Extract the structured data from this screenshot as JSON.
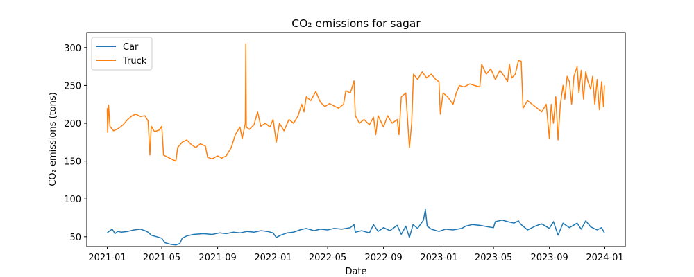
{
  "chart_data": {
    "type": "line",
    "title": "CO₂ emissions for sagar",
    "xlabel": "Date",
    "ylabel": "CO₂ emissions (tons)",
    "xlim": [
      "2020-11-17",
      "2024-02-15"
    ],
    "ylim": [
      37,
      320
    ],
    "x_ticks": [
      "2021-01",
      "2021-05",
      "2021-09",
      "2022-01",
      "2022-05",
      "2022-09",
      "2023-01",
      "2023-05",
      "2023-09",
      "2024-01"
    ],
    "y_ticks": [
      50,
      100,
      150,
      200,
      250,
      300
    ],
    "grid": false,
    "legend_position": "upper-left",
    "series": [
      {
        "name": "Car",
        "color": "#1f77b4",
        "points": [
          [
            "2021-01-01",
            55
          ],
          [
            "2021-01-07",
            58
          ],
          [
            "2021-01-12",
            60
          ],
          [
            "2021-01-18",
            54
          ],
          [
            "2021-01-24",
            57
          ],
          [
            "2021-02-01",
            56
          ],
          [
            "2021-02-15",
            57
          ],
          [
            "2021-03-01",
            59
          ],
          [
            "2021-03-15",
            60
          ],
          [
            "2021-03-25",
            58
          ],
          [
            "2021-04-01",
            56
          ],
          [
            "2021-04-08",
            52
          ],
          [
            "2021-04-20",
            50
          ],
          [
            "2021-05-01",
            48
          ],
          [
            "2021-05-08",
            42
          ],
          [
            "2021-05-20",
            40
          ],
          [
            "2021-06-01",
            39
          ],
          [
            "2021-06-10",
            41
          ],
          [
            "2021-06-15",
            48
          ],
          [
            "2021-06-25",
            51
          ],
          [
            "2021-07-10",
            53
          ],
          [
            "2021-08-01",
            54
          ],
          [
            "2021-08-20",
            53
          ],
          [
            "2021-09-05",
            55
          ],
          [
            "2021-09-20",
            54
          ],
          [
            "2021-10-05",
            56
          ],
          [
            "2021-10-20",
            55
          ],
          [
            "2021-11-05",
            57
          ],
          [
            "2021-11-20",
            56
          ],
          [
            "2021-12-05",
            58
          ],
          [
            "2021-12-20",
            57
          ],
          [
            "2022-01-01",
            55
          ],
          [
            "2022-01-08",
            49
          ],
          [
            "2022-01-18",
            52
          ],
          [
            "2022-02-01",
            55
          ],
          [
            "2022-02-15",
            56
          ],
          [
            "2022-03-01",
            59
          ],
          [
            "2022-03-15",
            61
          ],
          [
            "2022-04-01",
            58
          ],
          [
            "2022-04-15",
            60
          ],
          [
            "2022-05-01",
            59
          ],
          [
            "2022-05-15",
            61
          ],
          [
            "2022-06-01",
            60
          ],
          [
            "2022-06-20",
            62
          ],
          [
            "2022-06-28",
            66
          ],
          [
            "2022-07-01",
            56
          ],
          [
            "2022-07-15",
            58
          ],
          [
            "2022-08-01",
            55
          ],
          [
            "2022-08-10",
            66
          ],
          [
            "2022-08-20",
            57
          ],
          [
            "2022-09-01",
            62
          ],
          [
            "2022-09-15",
            58
          ],
          [
            "2022-10-01",
            65
          ],
          [
            "2022-10-10",
            53
          ],
          [
            "2022-10-20",
            64
          ],
          [
            "2022-10-28",
            49
          ],
          [
            "2022-11-05",
            66
          ],
          [
            "2022-11-15",
            61
          ],
          [
            "2022-11-28",
            72
          ],
          [
            "2022-12-02",
            86
          ],
          [
            "2022-12-06",
            64
          ],
          [
            "2022-12-15",
            60
          ],
          [
            "2023-01-01",
            57
          ],
          [
            "2023-01-15",
            60
          ],
          [
            "2023-02-01",
            59
          ],
          [
            "2023-02-20",
            61
          ],
          [
            "2023-03-01",
            64
          ],
          [
            "2023-03-15",
            66
          ],
          [
            "2023-04-01",
            65
          ],
          [
            "2023-04-20",
            63
          ],
          [
            "2023-05-01",
            62
          ],
          [
            "2023-05-05",
            70
          ],
          [
            "2023-05-20",
            72
          ],
          [
            "2023-06-01",
            70
          ],
          [
            "2023-06-15",
            68
          ],
          [
            "2023-06-25",
            71
          ],
          [
            "2023-07-01",
            66
          ],
          [
            "2023-07-15",
            59
          ],
          [
            "2023-08-01",
            64
          ],
          [
            "2023-08-15",
            67
          ],
          [
            "2023-09-01",
            61
          ],
          [
            "2023-09-10",
            70
          ],
          [
            "2023-09-20",
            52
          ],
          [
            "2023-10-01",
            68
          ],
          [
            "2023-10-15",
            62
          ],
          [
            "2023-11-01",
            68
          ],
          [
            "2023-11-10",
            60
          ],
          [
            "2023-11-20",
            71
          ],
          [
            "2023-12-01",
            63
          ],
          [
            "2023-12-15",
            59
          ],
          [
            "2023-12-25",
            62
          ],
          [
            "2023-12-31",
            55
          ]
        ]
      },
      {
        "name": "Truck",
        "color": "#ff7f0e",
        "points": [
          [
            "2021-01-01",
            220
          ],
          [
            "2021-01-02",
            188
          ],
          [
            "2021-01-04",
            224
          ],
          [
            "2021-01-07",
            196
          ],
          [
            "2021-01-15",
            190
          ],
          [
            "2021-01-25",
            193
          ],
          [
            "2021-02-05",
            198
          ],
          [
            "2021-02-15",
            205
          ],
          [
            "2021-02-25",
            210
          ],
          [
            "2021-03-05",
            212
          ],
          [
            "2021-03-15",
            209
          ],
          [
            "2021-03-25",
            210
          ],
          [
            "2021-04-01",
            203
          ],
          [
            "2021-04-05",
            158
          ],
          [
            "2021-04-08",
            196
          ],
          [
            "2021-04-15",
            189
          ],
          [
            "2021-04-25",
            191
          ],
          [
            "2021-05-01",
            196
          ],
          [
            "2021-05-05",
            158
          ],
          [
            "2021-05-15",
            155
          ],
          [
            "2021-05-25",
            152
          ],
          [
            "2021-06-01",
            150
          ],
          [
            "2021-06-05",
            168
          ],
          [
            "2021-06-15",
            175
          ],
          [
            "2021-06-25",
            178
          ],
          [
            "2021-07-05",
            172
          ],
          [
            "2021-07-15",
            168
          ],
          [
            "2021-07-25",
            173
          ],
          [
            "2021-08-05",
            170
          ],
          [
            "2021-08-10",
            155
          ],
          [
            "2021-08-20",
            153
          ],
          [
            "2021-09-01",
            157
          ],
          [
            "2021-09-10",
            154
          ],
          [
            "2021-09-20",
            157
          ],
          [
            "2021-10-01",
            168
          ],
          [
            "2021-10-10",
            185
          ],
          [
            "2021-10-20",
            195
          ],
          [
            "2021-10-25",
            180
          ],
          [
            "2021-11-01",
            200
          ],
          [
            "2021-11-02",
            305
          ],
          [
            "2021-11-03",
            195
          ],
          [
            "2021-11-10",
            192
          ],
          [
            "2021-11-20",
            198
          ],
          [
            "2021-11-28",
            215
          ],
          [
            "2021-12-05",
            196
          ],
          [
            "2021-12-15",
            200
          ],
          [
            "2021-12-25",
            195
          ],
          [
            "2022-01-01",
            205
          ],
          [
            "2022-01-08",
            175
          ],
          [
            "2022-01-15",
            200
          ],
          [
            "2022-01-25",
            190
          ],
          [
            "2022-02-05",
            205
          ],
          [
            "2022-02-15",
            200
          ],
          [
            "2022-02-25",
            210
          ],
          [
            "2022-03-05",
            225
          ],
          [
            "2022-03-10",
            215
          ],
          [
            "2022-03-15",
            235
          ],
          [
            "2022-03-25",
            230
          ],
          [
            "2022-04-05",
            242
          ],
          [
            "2022-04-15",
            228
          ],
          [
            "2022-04-25",
            222
          ],
          [
            "2022-05-05",
            226
          ],
          [
            "2022-05-15",
            223
          ],
          [
            "2022-05-25",
            220
          ],
          [
            "2022-06-05",
            225
          ],
          [
            "2022-06-10",
            243
          ],
          [
            "2022-06-20",
            240
          ],
          [
            "2022-06-28",
            256
          ],
          [
            "2022-07-01",
            210
          ],
          [
            "2022-07-10",
            200
          ],
          [
            "2022-07-20",
            205
          ],
          [
            "2022-08-01",
            198
          ],
          [
            "2022-08-10",
            208
          ],
          [
            "2022-08-15",
            185
          ],
          [
            "2022-08-20",
            210
          ],
          [
            "2022-09-01",
            195
          ],
          [
            "2022-09-10",
            210
          ],
          [
            "2022-09-20",
            200
          ],
          [
            "2022-10-01",
            205
          ],
          [
            "2022-10-05",
            185
          ],
          [
            "2022-10-10",
            235
          ],
          [
            "2022-10-20",
            240
          ],
          [
            "2022-10-28",
            168
          ],
          [
            "2022-11-02",
            200
          ],
          [
            "2022-11-06",
            265
          ],
          [
            "2022-11-15",
            258
          ],
          [
            "2022-11-25",
            268
          ],
          [
            "2022-12-05",
            260
          ],
          [
            "2022-12-15",
            265
          ],
          [
            "2022-12-25",
            258
          ],
          [
            "2023-01-01",
            255
          ],
          [
            "2023-01-04",
            212
          ],
          [
            "2023-01-10",
            240
          ],
          [
            "2023-01-20",
            235
          ],
          [
            "2023-02-01",
            225
          ],
          [
            "2023-02-08",
            240
          ],
          [
            "2023-02-15",
            250
          ],
          [
            "2023-02-25",
            248
          ],
          [
            "2023-03-10",
            252
          ],
          [
            "2023-03-20",
            250
          ],
          [
            "2023-04-01",
            248
          ],
          [
            "2023-04-05",
            278
          ],
          [
            "2023-04-15",
            265
          ],
          [
            "2023-04-25",
            272
          ],
          [
            "2023-05-05",
            258
          ],
          [
            "2023-05-15",
            270
          ],
          [
            "2023-05-25",
            262
          ],
          [
            "2023-06-01",
            255
          ],
          [
            "2023-06-05",
            278
          ],
          [
            "2023-06-10",
            260
          ],
          [
            "2023-06-18",
            265
          ],
          [
            "2023-06-25",
            283
          ],
          [
            "2023-07-01",
            282
          ],
          [
            "2023-07-05",
            220
          ],
          [
            "2023-07-15",
            230
          ],
          [
            "2023-07-25",
            225
          ],
          [
            "2023-08-05",
            220
          ],
          [
            "2023-08-15",
            215
          ],
          [
            "2023-08-25",
            225
          ],
          [
            "2023-09-01",
            180
          ],
          [
            "2023-09-05",
            225
          ],
          [
            "2023-09-10",
            200
          ],
          [
            "2023-09-15",
            235
          ],
          [
            "2023-09-20",
            178
          ],
          [
            "2023-09-25",
            225
          ],
          [
            "2023-10-01",
            250
          ],
          [
            "2023-10-05",
            232
          ],
          [
            "2023-10-10",
            262
          ],
          [
            "2023-10-15",
            255
          ],
          [
            "2023-10-20",
            225
          ],
          [
            "2023-10-25",
            262
          ],
          [
            "2023-11-01",
            275
          ],
          [
            "2023-11-05",
            240
          ],
          [
            "2023-11-10",
            270
          ],
          [
            "2023-11-15",
            232
          ],
          [
            "2023-11-20",
            268
          ],
          [
            "2023-11-25",
            255
          ],
          [
            "2023-12-01",
            245
          ],
          [
            "2023-12-05",
            262
          ],
          [
            "2023-12-10",
            225
          ],
          [
            "2023-12-15",
            258
          ],
          [
            "2023-12-20",
            218
          ],
          [
            "2023-12-25",
            255
          ],
          [
            "2023-12-29",
            222
          ],
          [
            "2023-12-31",
            250
          ]
        ]
      }
    ]
  }
}
